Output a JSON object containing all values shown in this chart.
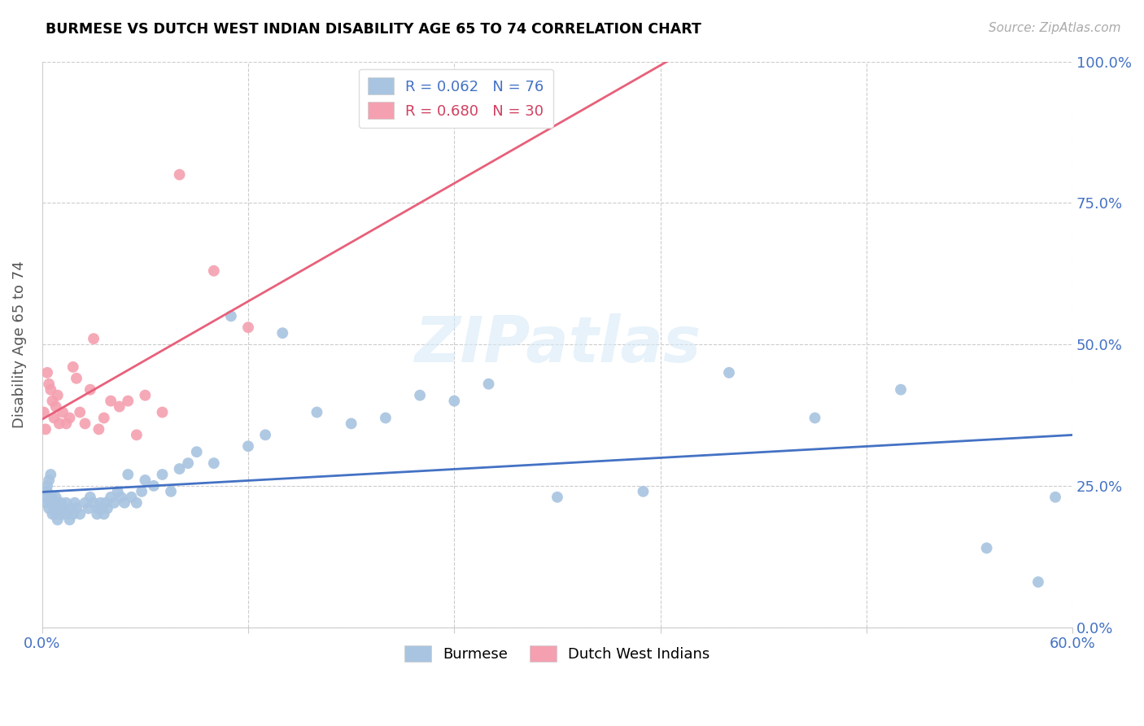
{
  "title": "BURMESE VS DUTCH WEST INDIAN DISABILITY AGE 65 TO 74 CORRELATION CHART",
  "source": "Source: ZipAtlas.com",
  "ylabel": "Disability Age 65 to 74",
  "xlim": [
    0.0,
    0.6
  ],
  "ylim": [
    0.0,
    1.0
  ],
  "ytick_labels": [
    "0.0%",
    "25.0%",
    "50.0%",
    "75.0%",
    "100.0%"
  ],
  "ytick_values": [
    0.0,
    0.25,
    0.5,
    0.75,
    1.0
  ],
  "xtick_values": [
    0.0,
    0.12,
    0.24,
    0.36,
    0.48,
    0.6
  ],
  "burmese_color": "#a8c4e0",
  "dutch_color": "#f4a0b0",
  "burmese_line_color": "#4472c4",
  "dutch_line_color": "#e8607a",
  "watermark": "ZIPatlas",
  "legend_burmese_R": "0.062",
  "legend_burmese_N": "76",
  "legend_dutch_R": "0.680",
  "legend_dutch_N": "30",
  "burmese_x": [
    0.001,
    0.002,
    0.003,
    0.003,
    0.004,
    0.004,
    0.005,
    0.005,
    0.006,
    0.006,
    0.007,
    0.007,
    0.008,
    0.008,
    0.009,
    0.009,
    0.01,
    0.01,
    0.011,
    0.011,
    0.012,
    0.013,
    0.014,
    0.015,
    0.016,
    0.017,
    0.018,
    0.019,
    0.02,
    0.022,
    0.025,
    0.027,
    0.028,
    0.03,
    0.032,
    0.033,
    0.034,
    0.035,
    0.036,
    0.037,
    0.038,
    0.04,
    0.042,
    0.044,
    0.046,
    0.048,
    0.05,
    0.052,
    0.055,
    0.058,
    0.06,
    0.065,
    0.07,
    0.075,
    0.08,
    0.085,
    0.09,
    0.1,
    0.11,
    0.12,
    0.13,
    0.14,
    0.16,
    0.18,
    0.2,
    0.22,
    0.24,
    0.26,
    0.3,
    0.35,
    0.4,
    0.45,
    0.5,
    0.55,
    0.58,
    0.59
  ],
  "burmese_y": [
    0.23,
    0.22,
    0.24,
    0.25,
    0.21,
    0.26,
    0.22,
    0.27,
    0.2,
    0.23,
    0.22,
    0.21,
    0.23,
    0.2,
    0.19,
    0.22,
    0.21,
    0.2,
    0.22,
    0.21,
    0.2,
    0.21,
    0.22,
    0.2,
    0.19,
    0.21,
    0.2,
    0.22,
    0.21,
    0.2,
    0.22,
    0.21,
    0.23,
    0.22,
    0.2,
    0.21,
    0.22,
    0.21,
    0.2,
    0.22,
    0.21,
    0.23,
    0.22,
    0.24,
    0.23,
    0.22,
    0.27,
    0.23,
    0.22,
    0.24,
    0.26,
    0.25,
    0.27,
    0.24,
    0.28,
    0.29,
    0.31,
    0.29,
    0.55,
    0.32,
    0.34,
    0.52,
    0.38,
    0.36,
    0.37,
    0.41,
    0.4,
    0.43,
    0.23,
    0.24,
    0.45,
    0.37,
    0.42,
    0.14,
    0.08,
    0.23
  ],
  "dutch_x": [
    0.001,
    0.002,
    0.003,
    0.004,
    0.005,
    0.006,
    0.007,
    0.008,
    0.009,
    0.01,
    0.012,
    0.014,
    0.016,
    0.018,
    0.02,
    0.022,
    0.025,
    0.028,
    0.03,
    0.033,
    0.036,
    0.04,
    0.045,
    0.05,
    0.055,
    0.06,
    0.07,
    0.08,
    0.1,
    0.12
  ],
  "dutch_y": [
    0.38,
    0.35,
    0.45,
    0.43,
    0.42,
    0.4,
    0.37,
    0.39,
    0.41,
    0.36,
    0.38,
    0.36,
    0.37,
    0.46,
    0.44,
    0.38,
    0.36,
    0.42,
    0.51,
    0.35,
    0.37,
    0.4,
    0.39,
    0.4,
    0.34,
    0.41,
    0.38,
    0.8,
    0.63,
    0.53
  ]
}
